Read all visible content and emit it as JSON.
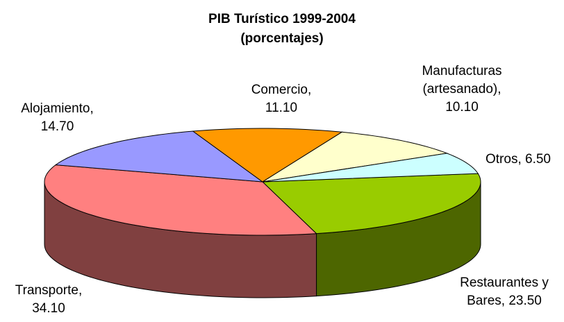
{
  "chart_data": {
    "type": "pie3d",
    "title": "PIB Turístico 1999-2004",
    "subtitle": "(porcentajes)",
    "label_separator": ",",
    "categories": [
      "Restaurantes y Bares",
      "Transporte",
      "Alojamiento",
      "Comercio",
      "Manufacturas (artesanado)",
      "Otros"
    ],
    "values": [
      23.5,
      34.1,
      14.7,
      11.1,
      10.1,
      6.5
    ],
    "value_labels": [
      "23.50",
      "34.10",
      "14.70",
      "11.10",
      "10.10",
      "6.50"
    ],
    "colors": [
      "#99cc00",
      "#ff8080",
      "#9999ff",
      "#ff9900",
      "#ffffcc",
      "#ccffff"
    ],
    "side_colors": [
      "#4d6600",
      "#804040",
      "#4d4d80",
      "#804d00",
      "#808066",
      "#668080"
    ]
  }
}
